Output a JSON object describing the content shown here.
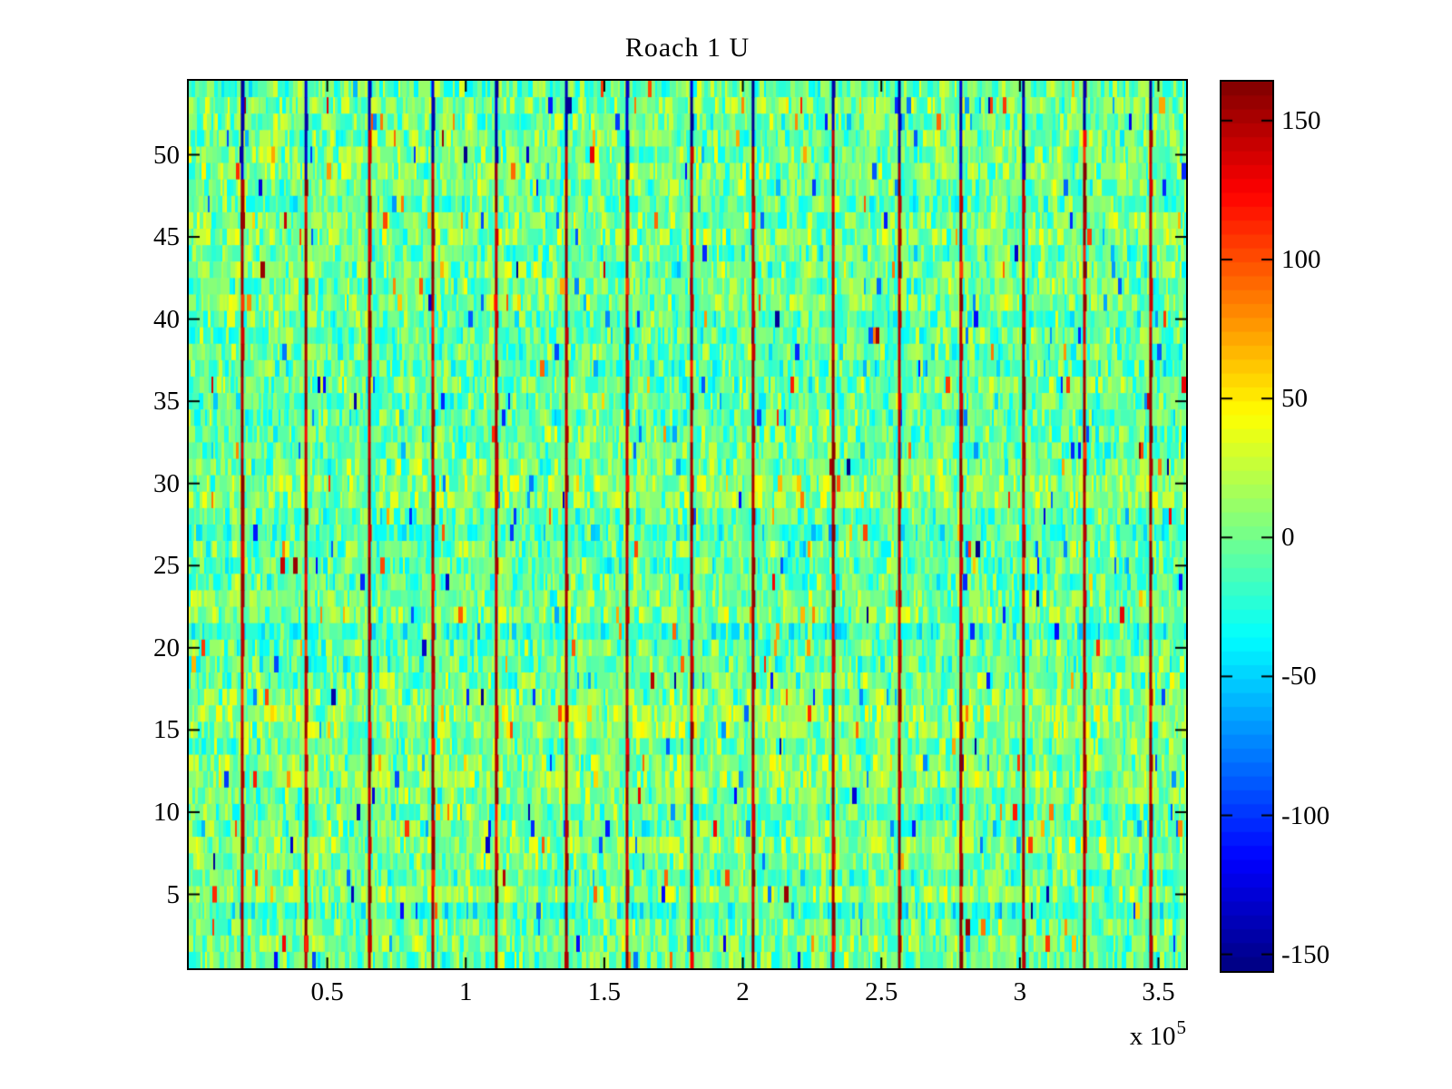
{
  "chart_data": {
    "type": "heatmap",
    "title": "Roach 1 U",
    "xlabel": "",
    "ylabel": "",
    "x_range": [
      0,
      360000
    ],
    "x_ticks": [
      50000,
      100000,
      150000,
      200000,
      250000,
      300000,
      350000
    ],
    "x_tick_labels": [
      "0.5",
      "1",
      "1.5",
      "2",
      "2.5",
      "3",
      "3.5"
    ],
    "x_offset_label": {
      "base": "x 10",
      "exponent": "5"
    },
    "y_range": [
      0.5,
      54.5
    ],
    "n_rows": 54,
    "y_ticks": [
      5,
      10,
      15,
      20,
      25,
      30,
      35,
      40,
      45,
      50
    ],
    "y_tick_labels": [
      "5",
      "10",
      "15",
      "20",
      "25",
      "30",
      "35",
      "40",
      "45",
      "50"
    ],
    "grid": false,
    "colormap": "jet",
    "colormap_levels": 64,
    "color_range": [
      -156,
      164
    ],
    "colorbar": {
      "position": "right",
      "ticks": [
        150,
        100,
        50,
        0,
        -50,
        -100,
        -150
      ],
      "tick_labels": [
        "150",
        "100",
        "50",
        "0",
        "-50",
        "-100",
        "-150"
      ]
    },
    "background_noise": {
      "mean": 0,
      "spread": 36,
      "row_bias_spread": 10,
      "outlier_prob": 0.022,
      "outlier_range": [
        55,
        115
      ],
      "extreme_prob": 0.004,
      "extreme_range": [
        125,
        160
      ]
    },
    "rfi_stripes": {
      "x_positions": [
        19300,
        42300,
        65200,
        88100,
        111000,
        136300,
        158200,
        181500,
        203700,
        232600,
        256500,
        278700,
        301300,
        323300,
        347200
      ],
      "bottom_value": 160,
      "top_value": -150,
      "blue_above_row_min": 48,
      "blue_above_row_max": 51
    },
    "colors": {
      "axis": "#000000",
      "background": "#ffffff",
      "stripe_red": "#8b0000",
      "stripe_blue": "#00008b"
    }
  }
}
